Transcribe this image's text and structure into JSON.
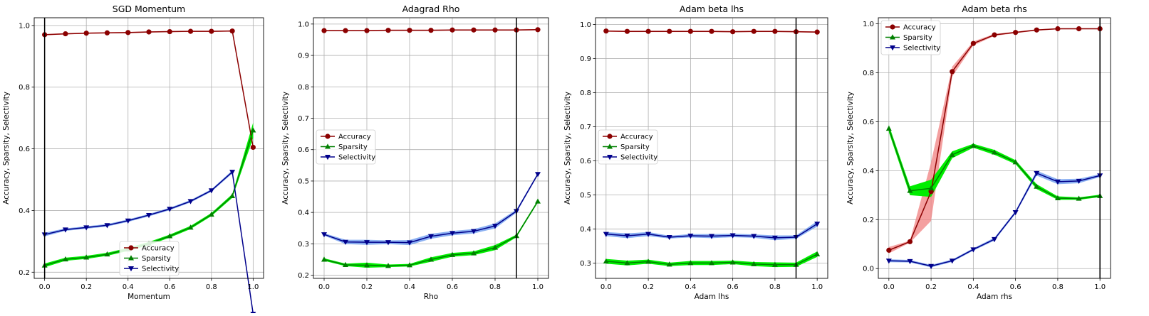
{
  "figure": {
    "colors": {
      "accuracy": "#8b0000",
      "accuracy_band": "#f08080",
      "sparsity": "#008000",
      "sparsity_band": "#00ee00",
      "selectivity": "#00008b",
      "selectivity_band": "#6495ed",
      "grid": "#b0b0b0",
      "vline": "#000000"
    }
  },
  "chart_data": [
    {
      "type": "line",
      "title": "SGD Momentum",
      "xlabel": "Momentum",
      "ylabel": "Accuracy, Sparsity, Selectivity",
      "xlim": [
        -0.05,
        1.05
      ],
      "ylim": [
        0.18,
        1.025
      ],
      "xticks": [
        "0.0",
        "0.2",
        "0.4",
        "0.6",
        "0.8",
        "1.0"
      ],
      "yticks": [
        "0.2",
        "0.4",
        "0.6",
        "0.8",
        "1.0"
      ],
      "grid": true,
      "legend_position": "lower-center",
      "vline_x": 0.0,
      "x": [
        0.0,
        0.1,
        0.2,
        0.3,
        0.4,
        0.5,
        0.6,
        0.7,
        0.8,
        0.9,
        1.0
      ],
      "series": [
        {
          "name": "Accuracy",
          "marker": "circle",
          "values": [
            0.97,
            0.973,
            0.975,
            0.976,
            0.977,
            0.979,
            0.98,
            0.981,
            0.981,
            0.982,
            0.605
          ],
          "spread": [
            0.002,
            0.002,
            0.002,
            0.002,
            0.002,
            0.002,
            0.002,
            0.002,
            0.002,
            0.002,
            0.005
          ]
        },
        {
          "name": "Sparsity",
          "marker": "triangle-up",
          "values": [
            0.222,
            0.242,
            0.248,
            0.258,
            0.274,
            0.293,
            0.317,
            0.345,
            0.387,
            0.447,
            0.66
          ],
          "spread": [
            0.006,
            0.005,
            0.005,
            0.005,
            0.005,
            0.005,
            0.005,
            0.005,
            0.005,
            0.006,
            0.025
          ]
        },
        {
          "name": "Selectivity",
          "marker": "triangle-down",
          "values": [
            0.322,
            0.338,
            0.345,
            0.352,
            0.367,
            0.385,
            0.405,
            0.43,
            0.465,
            0.525,
            0.065
          ],
          "spread": [
            0.006,
            0.004,
            0.004,
            0.004,
            0.004,
            0.004,
            0.004,
            0.004,
            0.004,
            0.005,
            0.004
          ]
        }
      ]
    },
    {
      "type": "line",
      "title": "Adagrad Rho",
      "xlabel": "Rho",
      "ylabel": "Accuracy, Sparsity, Selectivity",
      "xlim": [
        -0.05,
        1.05
      ],
      "ylim": [
        0.19,
        1.02
      ],
      "xticks": [
        "0.0",
        "0.2",
        "0.4",
        "0.6",
        "0.8",
        "1.0"
      ],
      "yticks": [
        "0.2",
        "0.3",
        "0.4",
        "0.5",
        "0.6",
        "0.7",
        "0.8",
        "0.9",
        "1.0"
      ],
      "grid": true,
      "legend_position": "center-left",
      "vline_x": 0.9,
      "x": [
        0.0,
        0.1,
        0.2,
        0.3,
        0.4,
        0.5,
        0.6,
        0.7,
        0.8,
        0.9,
        1.0
      ],
      "series": [
        {
          "name": "Accuracy",
          "marker": "circle",
          "values": [
            0.979,
            0.979,
            0.979,
            0.98,
            0.98,
            0.98,
            0.981,
            0.981,
            0.981,
            0.981,
            0.982
          ],
          "spread": [
            0.002,
            0.002,
            0.002,
            0.002,
            0.002,
            0.002,
            0.002,
            0.002,
            0.002,
            0.002,
            0.002
          ]
        },
        {
          "name": "Sparsity",
          "marker": "triangle-up",
          "values": [
            0.25,
            0.233,
            0.232,
            0.23,
            0.232,
            0.25,
            0.265,
            0.27,
            0.288,
            0.325,
            0.435
          ],
          "spread": [
            0.004,
            0.004,
            0.008,
            0.004,
            0.004,
            0.007,
            0.006,
            0.006,
            0.008,
            0.004,
            0.004
          ]
        },
        {
          "name": "Selectivity",
          "marker": "triangle-down",
          "values": [
            0.33,
            0.306,
            0.305,
            0.305,
            0.304,
            0.324,
            0.334,
            0.34,
            0.357,
            0.404,
            0.522
          ],
          "spread": [
            0.004,
            0.007,
            0.008,
            0.006,
            0.008,
            0.008,
            0.007,
            0.007,
            0.008,
            0.005,
            0.004
          ]
        }
      ]
    },
    {
      "type": "line",
      "title": "Adam beta lhs",
      "xlabel": "Adam lhs",
      "ylabel": "Accuracy, Sparsity, Selectivity",
      "xlim": [
        -0.05,
        1.05
      ],
      "ylim": [
        0.255,
        1.02
      ],
      "xticks": [
        "0.0",
        "0.2",
        "0.4",
        "0.6",
        "0.8",
        "1.0"
      ],
      "yticks": [
        "0.3",
        "0.4",
        "0.5",
        "0.6",
        "0.7",
        "0.8",
        "0.9",
        "1.0"
      ],
      "grid": true,
      "legend_position": "center-left",
      "vline_x": 0.9,
      "x": [
        0.0,
        0.1,
        0.2,
        0.3,
        0.4,
        0.5,
        0.6,
        0.7,
        0.8,
        0.9,
        1.0
      ],
      "series": [
        {
          "name": "Accuracy",
          "marker": "circle",
          "values": [
            0.981,
            0.98,
            0.98,
            0.98,
            0.98,
            0.98,
            0.979,
            0.98,
            0.98,
            0.979,
            0.978
          ],
          "spread": [
            0.002,
            0.002,
            0.002,
            0.002,
            0.002,
            0.002,
            0.002,
            0.002,
            0.002,
            0.002,
            0.002
          ]
        },
        {
          "name": "Sparsity",
          "marker": "triangle-up",
          "values": [
            0.305,
            0.3,
            0.304,
            0.296,
            0.3,
            0.3,
            0.302,
            0.297,
            0.295,
            0.295,
            0.326
          ],
          "spread": [
            0.007,
            0.007,
            0.006,
            0.005,
            0.006,
            0.006,
            0.005,
            0.006,
            0.007,
            0.006,
            0.008
          ]
        },
        {
          "name": "Selectivity",
          "marker": "triangle-down",
          "values": [
            0.385,
            0.38,
            0.385,
            0.376,
            0.38,
            0.379,
            0.381,
            0.379,
            0.374,
            0.376,
            0.415
          ],
          "spread": [
            0.006,
            0.007,
            0.006,
            0.004,
            0.005,
            0.006,
            0.005,
            0.005,
            0.007,
            0.005,
            0.008
          ]
        }
      ]
    },
    {
      "type": "line",
      "title": "Adam beta rhs",
      "xlabel": "Adam rhs",
      "ylabel": "Accuracy, Sparsity, Selectivity",
      "xlim": [
        -0.05,
        1.05
      ],
      "ylim": [
        -0.04,
        1.025
      ],
      "xticks": [
        "0.0",
        "0.2",
        "0.4",
        "0.6",
        "0.8",
        "1.0"
      ],
      "yticks": [
        "0.0",
        "0.2",
        "0.4",
        "0.6",
        "0.8",
        "1.0"
      ],
      "grid": true,
      "legend_position": "top-left",
      "vline_x": 1.0,
      "x": [
        0.0,
        0.1,
        0.2,
        0.3,
        0.4,
        0.5,
        0.6,
        0.7,
        0.8,
        0.9,
        1.0
      ],
      "series": [
        {
          "name": "Accuracy",
          "marker": "circle",
          "values": [
            0.075,
            0.11,
            0.315,
            0.805,
            0.92,
            0.955,
            0.965,
            0.975,
            0.98,
            0.98,
            0.98
          ],
          "spread": [
            0.013,
            0.004,
            0.12,
            0.02,
            0.008,
            0.004,
            0.003,
            0.003,
            0.002,
            0.002,
            0.002
          ]
        },
        {
          "name": "Sparsity",
          "marker": "triangle-up",
          "values": [
            0.572,
            0.318,
            0.328,
            0.465,
            0.502,
            0.475,
            0.435,
            0.335,
            0.288,
            0.286,
            0.297
          ],
          "spread": [
            0.015,
            0.018,
            0.035,
            0.014,
            0.008,
            0.01,
            0.008,
            0.01,
            0.007,
            0.005,
            0.005
          ]
        },
        {
          "name": "Selectivity",
          "marker": "triangle-down",
          "values": [
            0.032,
            0.03,
            0.01,
            0.032,
            0.078,
            0.12,
            0.23,
            0.39,
            0.355,
            0.358,
            0.38
          ],
          "spread": [
            0.006,
            0.005,
            0.005,
            0.005,
            0.005,
            0.006,
            0.006,
            0.01,
            0.01,
            0.009,
            0.006
          ]
        }
      ]
    }
  ]
}
